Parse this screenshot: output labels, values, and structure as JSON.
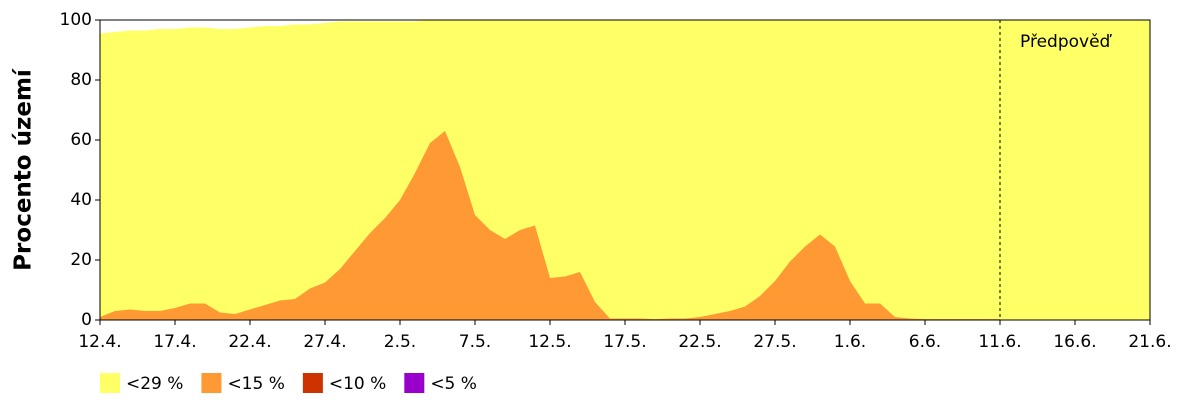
{
  "chart_data": {
    "type": "area",
    "y_label": "Procento území",
    "annotation": {
      "text": "Předpověď",
      "at": "11.6."
    },
    "categories": [
      "12.4.",
      null,
      null,
      null,
      null,
      "17.4.",
      null,
      null,
      null,
      null,
      "22.4.",
      null,
      null,
      null,
      null,
      "27.4.",
      null,
      null,
      null,
      null,
      "2.5.",
      null,
      null,
      null,
      null,
      "7.5.",
      null,
      null,
      null,
      null,
      "12.5.",
      null,
      null,
      null,
      null,
      "17.5.",
      null,
      null,
      null,
      null,
      "22.5.",
      null,
      null,
      null,
      null,
      "27.5.",
      null,
      null,
      null,
      null,
      "1.6.",
      null,
      null,
      null,
      null,
      "6.6.",
      null,
      null,
      null,
      null,
      "11.6.",
      null,
      null,
      null,
      null,
      "16.6.",
      null,
      null,
      null,
      null,
      "21.6."
    ],
    "series": [
      {
        "name": "<29 %",
        "color": "#ffff66",
        "values": [
          95.5,
          96,
          96.5,
          96.5,
          97,
          97,
          97.5,
          97.5,
          97,
          97,
          97.5,
          98,
          98,
          98.5,
          98.5,
          99,
          99.5,
          99.5,
          99.5,
          99.5,
          99.5,
          99.5,
          100,
          100,
          100,
          100,
          100,
          100,
          100,
          100,
          100,
          100,
          100,
          100,
          100,
          100,
          100,
          100,
          100,
          100,
          100,
          100,
          100,
          100,
          100,
          100,
          100,
          100,
          100,
          100,
          100,
          100,
          100,
          100,
          100,
          100,
          100,
          100,
          100,
          100,
          100,
          100,
          100,
          100,
          100,
          100,
          100,
          100,
          100,
          100,
          100
        ]
      },
      {
        "name": "<15 %",
        "color": "#ff9933",
        "values": [
          1,
          3,
          3.5,
          3,
          3,
          4,
          5.5,
          5.5,
          2.5,
          2,
          3.5,
          5,
          6.5,
          7,
          10.5,
          12.5,
          17,
          23,
          29,
          34,
          40,
          49,
          59,
          63,
          51,
          35,
          30,
          27,
          30,
          31.5,
          14,
          14.5,
          16,
          6,
          0.5,
          0.5,
          0.5,
          0.3,
          0.5,
          0.5,
          1,
          2,
          3,
          4.5,
          8,
          13,
          19.5,
          24.5,
          28.5,
          24.5,
          13,
          5.5,
          5.5,
          1,
          0.5,
          0.3,
          0.3,
          0.3,
          0.3,
          0.3,
          0.3,
          null,
          null,
          null,
          null,
          null,
          null,
          null,
          null,
          null,
          null
        ]
      },
      {
        "name": "<10 %",
        "color": "#cc3300",
        "values": [
          0,
          0,
          0,
          0,
          0,
          0,
          0,
          0,
          0,
          0,
          0,
          0,
          0,
          0,
          0,
          0,
          0,
          0,
          0,
          0,
          0,
          0,
          0,
          0,
          0,
          0,
          0,
          0,
          0,
          0,
          0,
          0,
          0,
          0,
          0,
          0,
          0,
          0,
          0,
          0,
          0,
          0,
          0,
          0,
          0,
          0,
          0,
          0,
          0,
          0,
          0,
          0,
          0,
          0,
          0,
          0,
          0,
          0,
          0,
          0,
          0,
          null,
          null,
          null,
          null,
          null,
          null,
          null,
          null,
          null,
          null
        ]
      },
      {
        "name": "<5 %",
        "color": "#9900cc",
        "values": [
          0,
          0,
          0,
          0,
          0,
          0,
          0,
          0,
          0,
          0,
          0,
          0,
          0,
          0,
          0,
          0,
          0,
          0,
          0,
          0,
          0,
          0,
          0,
          0,
          0,
          0,
          0,
          0,
          0,
          0,
          0,
          0,
          0,
          0,
          0,
          0,
          0,
          0,
          0,
          0,
          0,
          0,
          0,
          0,
          0,
          0,
          0,
          0,
          0,
          0,
          0,
          0,
          0,
          0,
          0,
          0,
          0,
          0,
          0,
          0,
          0,
          null,
          null,
          null,
          null,
          null,
          null,
          null,
          null,
          null,
          null
        ]
      }
    ],
    "ylim": [
      0,
      100
    ],
    "yticks": [
      0,
      20,
      40,
      60,
      80,
      100
    ]
  }
}
